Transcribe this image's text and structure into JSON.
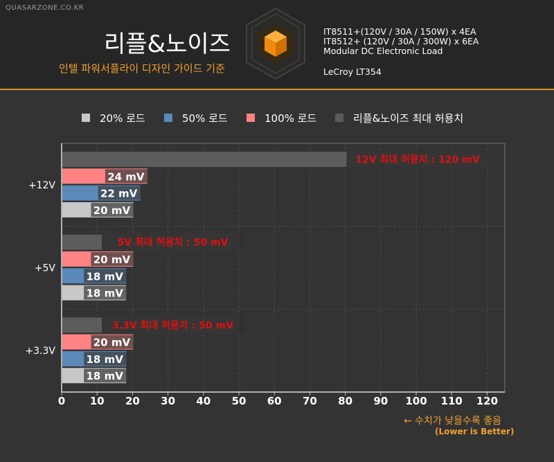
{
  "header": {
    "site": "QUASARZONE.CO.KR",
    "title": "리플&노이즈",
    "subtitle": "인텔 파워서플라이 디자인 가이드 기준",
    "equipment": [
      "IT8511+(120V / 30A / 150W) x 4EA",
      "IT8512+ (120V / 30A / 300W) x 6EA",
      "Modular DC Electronic Load",
      "LeCroy LT354"
    ]
  },
  "colors": {
    "load20": "#c8c8c8",
    "load50": "#5b89ba",
    "load100": "#ff8383",
    "max": "#5c5c5c",
    "accent": "#f0a030",
    "max_label": "#e01010"
  },
  "chart_data": {
    "type": "bar",
    "orientation": "horizontal",
    "categories": [
      "+12V",
      "+5V",
      "+3.3V"
    ],
    "series": [
      {
        "name": "리플&노이즈 최대 허용치",
        "values": [
          120,
          50,
          50
        ],
        "labels": [
          "12V 최대 허용치 : 120 mV",
          "5V 최대 허용치 : 50 mV",
          "3.3V 최대 허용치 : 50 mV"
        ]
      },
      {
        "name": "100% 로드",
        "values": [
          24,
          20,
          20
        ]
      },
      {
        "name": "50% 로드",
        "values": [
          22,
          18,
          18
        ]
      },
      {
        "name": "20% 로드",
        "values": [
          20,
          18,
          18
        ]
      }
    ],
    "legend": [
      "20% 로드",
      "50% 로드",
      "100% 로드",
      "리플&노이즈 최대 허용치"
    ],
    "legend_position": "top",
    "unit": "mV",
    "xlim": [
      0,
      125
    ],
    "xticks": [
      0,
      10,
      20,
      30,
      40,
      50,
      60,
      70,
      80,
      90,
      100,
      110,
      120
    ],
    "grid": true,
    "note": "← 수치가 낮을수록 좋음",
    "note_en": "(Lower is Better)"
  }
}
